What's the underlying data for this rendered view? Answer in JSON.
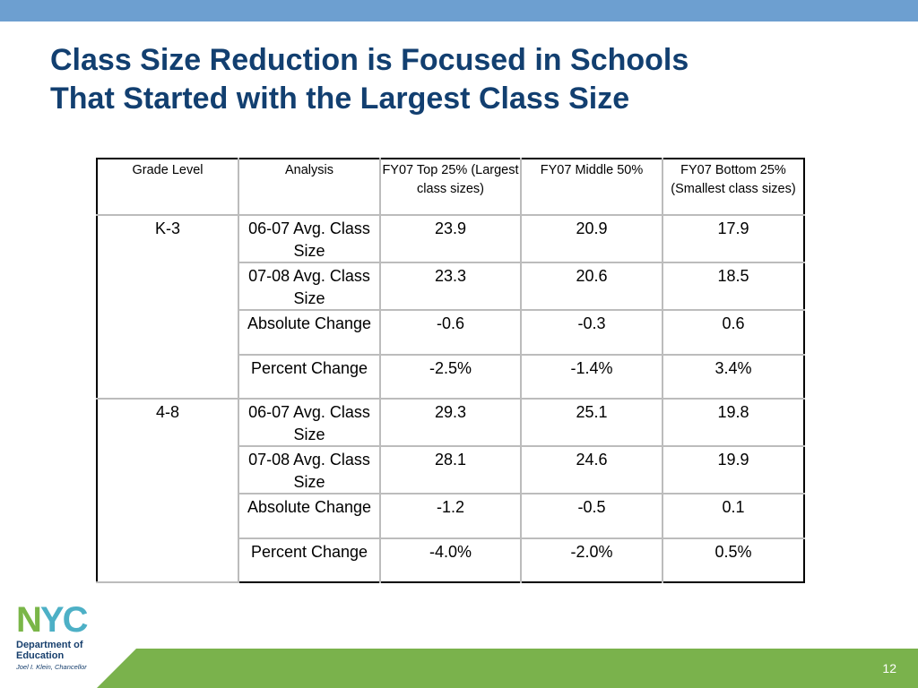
{
  "slide": {
    "title_line1": "Class Size Reduction is Focused in Schools",
    "title_line2": "That Started with the Largest Class Size",
    "page_number": "12",
    "colors": {
      "top_bar": "#6d9fd0",
      "bottom_bar": "#7ab24c",
      "title": "#123f70"
    }
  },
  "table": {
    "headers": [
      "Grade Level",
      "Analysis",
      "FY07 Top 25% (Largest class sizes)",
      "FY07 Middle 50%",
      "FY07 Bottom 25% (Smallest class sizes)"
    ],
    "groups": [
      {
        "grade": "K-3",
        "rows": [
          {
            "analysis": "06-07 Avg. Class Size",
            "top": "23.9",
            "middle": "20.9",
            "bottom": "17.9"
          },
          {
            "analysis": "07-08 Avg. Class Size",
            "top": "23.3",
            "middle": "20.6",
            "bottom": "18.5"
          },
          {
            "analysis": "Absolute Change",
            "top": "-0.6",
            "middle": "-0.3",
            "bottom": "0.6"
          },
          {
            "analysis": "Percent Change",
            "top": "-2.5%",
            "middle": "-1.4%",
            "bottom": "3.4%"
          }
        ]
      },
      {
        "grade": "4-8",
        "rows": [
          {
            "analysis": "06-07 Avg. Class Size",
            "top": "29.3",
            "middle": "25.1",
            "bottom": "19.8"
          },
          {
            "analysis": "07-08 Avg. Class Size",
            "top": "28.1",
            "middle": "24.6",
            "bottom": "19.9"
          },
          {
            "analysis": "Absolute Change",
            "top": "-1.2",
            "middle": "-0.5",
            "bottom": "0.1"
          },
          {
            "analysis": "Percent Change",
            "top": "-4.0%",
            "middle": "-2.0%",
            "bottom": "0.5%"
          }
        ]
      }
    ]
  },
  "logo": {
    "letters": [
      "N",
      "Y",
      "C"
    ],
    "dept_line1": "Department of",
    "dept_line2": "Education",
    "chancellor": "Joel I. Klein, Chancellor"
  }
}
